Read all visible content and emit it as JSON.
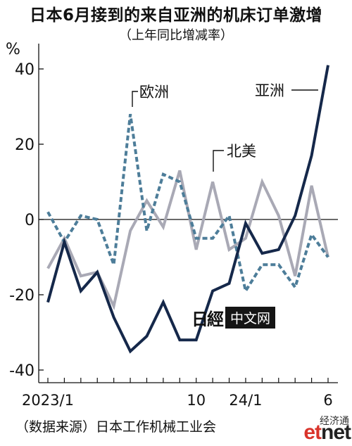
{
  "chart_data": {
    "type": "line",
    "title": "日本6月接到的来自亚洲的机床订单激增",
    "subtitle": "（上年同比增减率）",
    "ylabel": "%",
    "ylim": [
      -40,
      40
    ],
    "yticks": [
      "40",
      "20",
      "0",
      "-20",
      "-40"
    ],
    "xtick_labels": [
      "2023/1",
      "10",
      "24/1",
      "6"
    ],
    "x": [
      "2023/1",
      "2023/2",
      "2023/3",
      "2023/4",
      "2023/5",
      "2023/6",
      "2023/7",
      "2023/8",
      "2023/9",
      "2023/10",
      "2023/11",
      "2023/12",
      "2024/1",
      "2024/2",
      "2024/3",
      "2024/4",
      "2024/5",
      "2024/6"
    ],
    "series": [
      {
        "name": "亚洲",
        "color": "#15284a",
        "style": "solid",
        "values": [
          -22,
          -6,
          -19,
          -14,
          -26,
          -35,
          -31,
          -22,
          -32,
          -32,
          -19,
          -17,
          -1,
          -9,
          -8,
          1,
          17,
          41
        ]
      },
      {
        "name": "欧洲",
        "color": "#4d7d99",
        "style": "dashed",
        "values": [
          2,
          -6,
          1,
          0,
          -12,
          28,
          -3,
          12,
          10,
          -5,
          -5,
          1,
          -19,
          -12,
          -12,
          -18,
          -4,
          -10
        ]
      },
      {
        "name": "北美",
        "color": "#a9a9b5",
        "style": "solid",
        "values": [
          -13,
          -5,
          -15,
          -14,
          -23,
          -3,
          5,
          -2,
          13,
          -8,
          10,
          -8,
          -5,
          10,
          1,
          -15,
          9,
          -10
        ]
      }
    ],
    "grid": false,
    "legend": "inline-labels"
  },
  "source": "（数据来源）日本工作机械工业会",
  "watermark": {
    "logo": "日經",
    "label": "中文网"
  },
  "etnet": {
    "cn": "经济通",
    "logo_a": "et",
    "logo_b": "net"
  }
}
